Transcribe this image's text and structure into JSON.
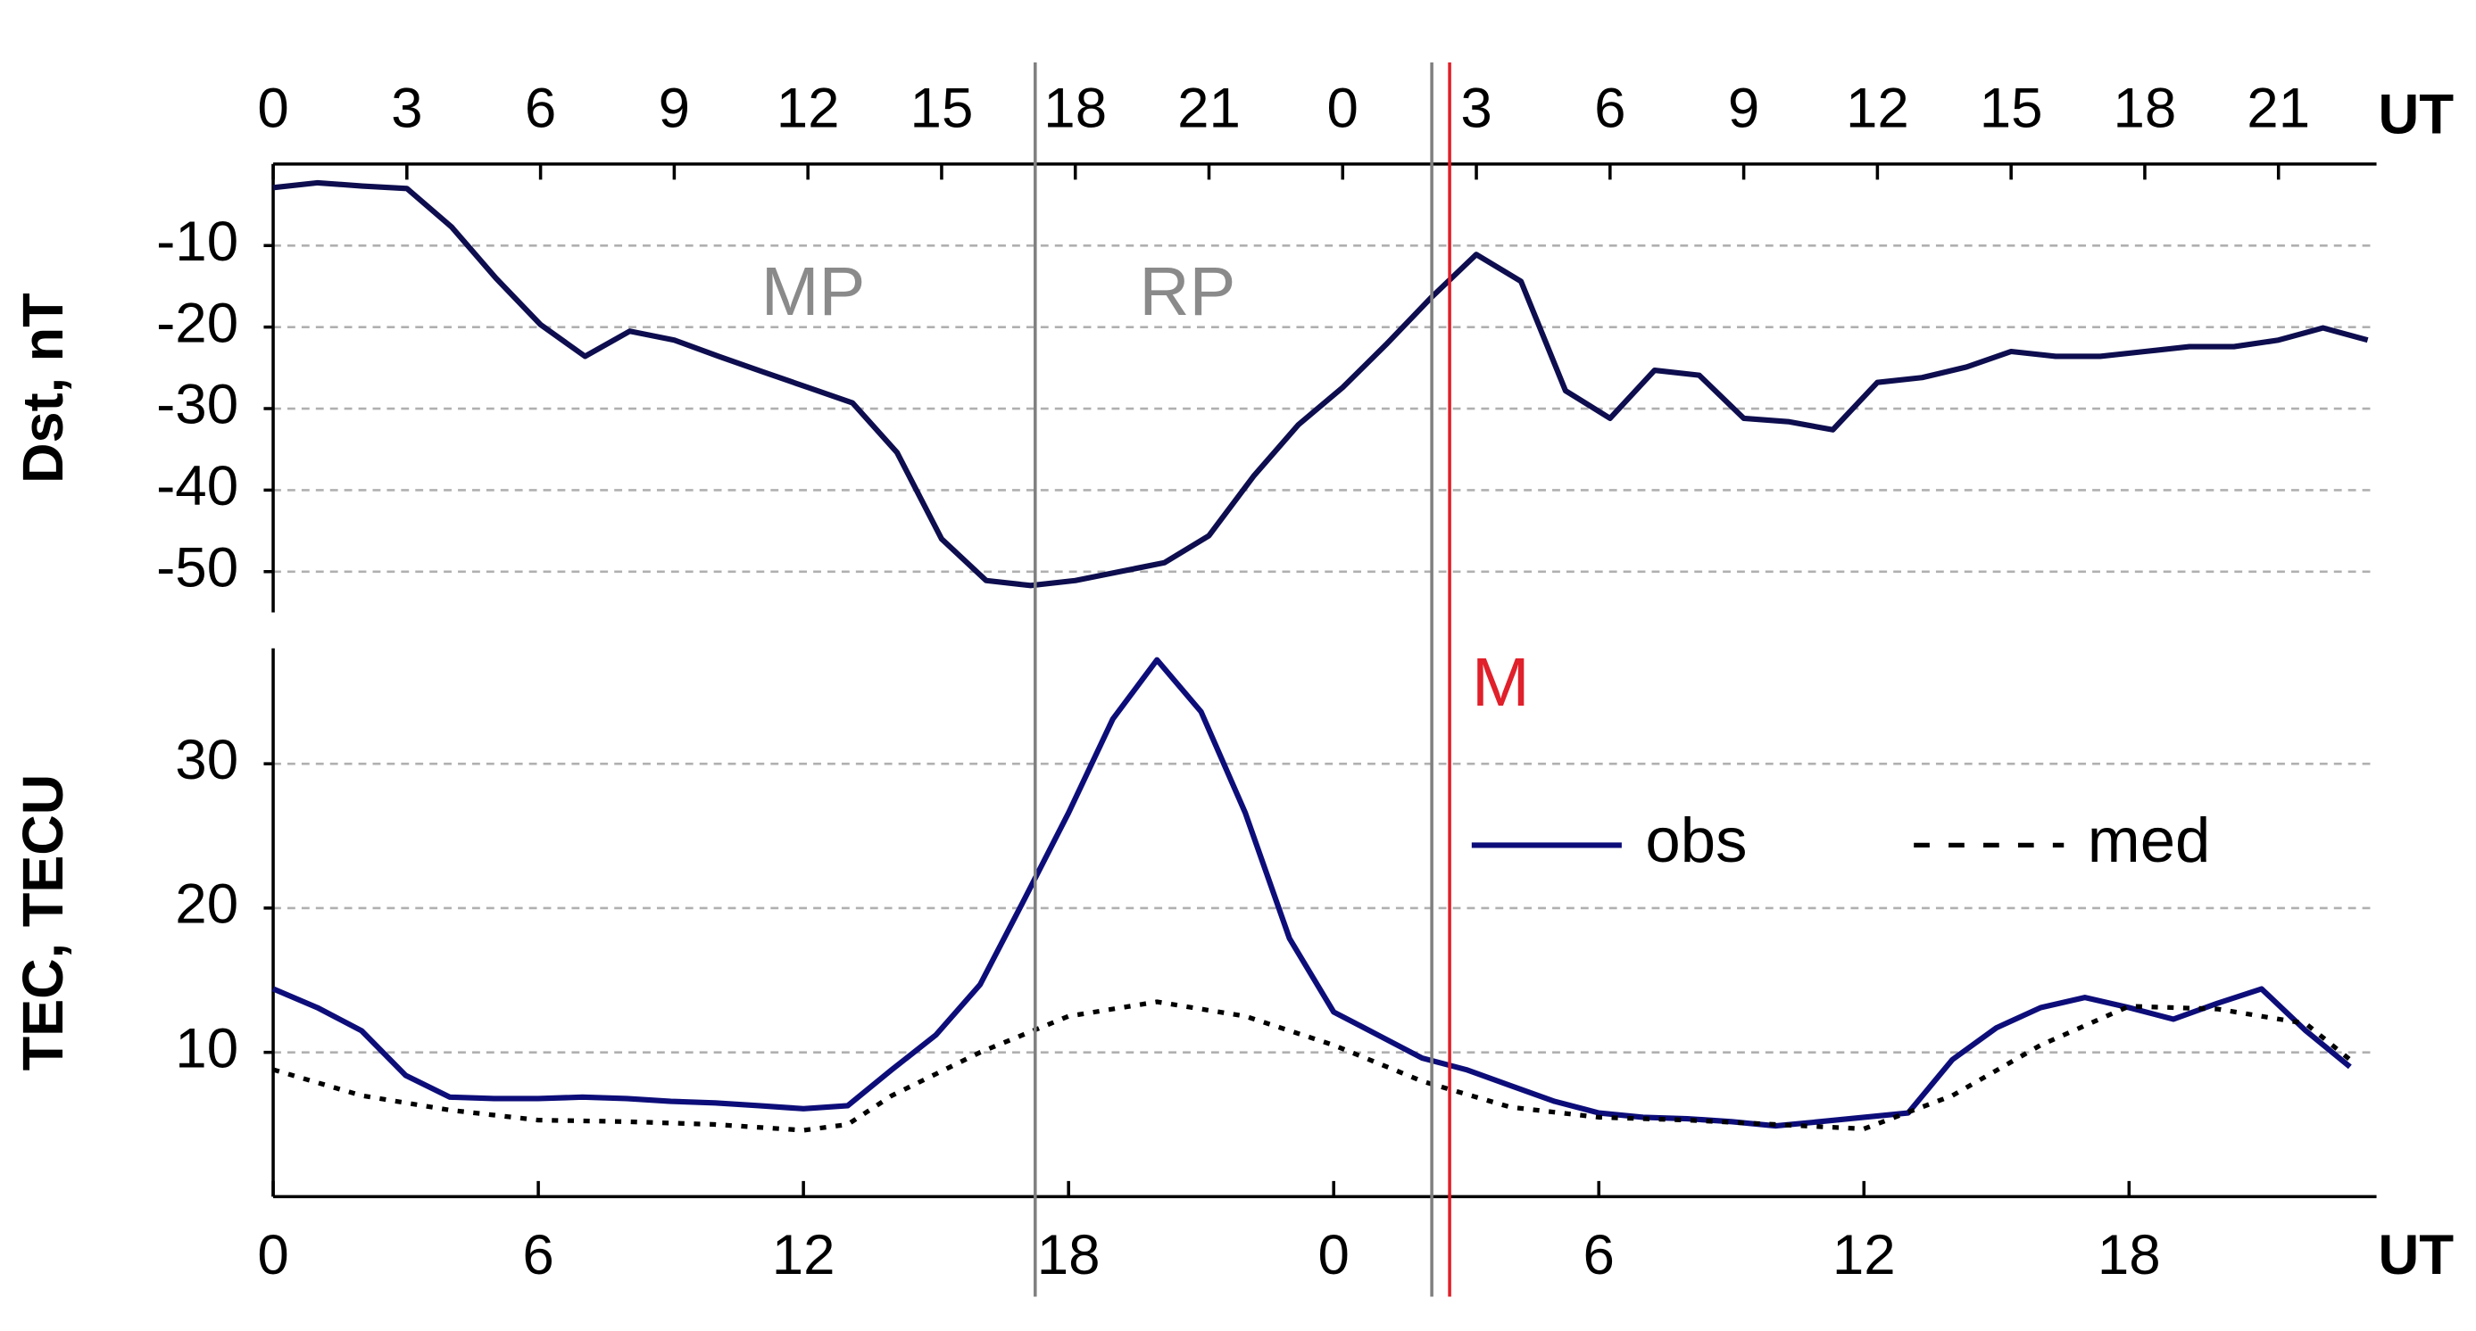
{
  "chart_data": [
    {
      "type": "line",
      "xaxis_position": "top",
      "xlabel": "UT",
      "ylabel": "Dst, nT",
      "xlim": [
        0,
        47.2
      ],
      "xticks": [
        0,
        3,
        6,
        9,
        12,
        15,
        18,
        21,
        {
          "value": 24,
          "label": "0"
        },
        {
          "value": 27,
          "label": "3"
        },
        {
          "value": 30,
          "label": "6"
        },
        {
          "value": 33,
          "label": "9"
        },
        {
          "value": 36,
          "label": "12"
        },
        {
          "value": 39,
          "label": "15"
        },
        {
          "value": 42,
          "label": "18"
        },
        {
          "value": 45,
          "label": "21"
        }
      ],
      "ylim": [
        -55,
        0
      ],
      "yticks": [
        -50,
        -40,
        -30,
        -20,
        -10
      ],
      "grid": true,
      "annotations": [
        "MP",
        "RP"
      ],
      "series": [
        {
          "name": "Dst",
          "color": "#0d0d4f",
          "x": [
            0,
            1,
            2,
            3,
            4,
            5,
            6,
            7,
            8,
            9,
            10,
            11,
            12,
            13,
            14,
            15,
            16,
            17,
            18,
            19,
            20,
            21,
            22,
            23,
            24,
            25,
            26,
            27,
            28,
            29,
            30,
            31,
            32,
            33,
            34,
            35,
            36,
            37,
            38,
            39,
            40,
            41,
            42,
            43,
            44,
            45,
            46,
            47
          ],
          "values": [
            -2.9,
            -2.3,
            -2.7,
            -3,
            -7.7,
            -14,
            -19.7,
            -23.6,
            -20.5,
            -21.6,
            -23.6,
            -25.5,
            -27.4,
            -29.3,
            -35.4,
            -46,
            -51.1,
            -51.7,
            -51.1,
            -50,
            -48.9,
            -45.6,
            -38.3,
            -32,
            -27.4,
            -22,
            -16.3,
            -11.1,
            -14.4,
            -27.8,
            -31.2,
            -25.3,
            -25.9,
            -31.2,
            -31.6,
            -32.6,
            -26.8,
            -26.2,
            -24.9,
            -23,
            -23.6,
            -23.6,
            -23,
            -22.4,
            -22.4,
            -21.6,
            -20.1,
            -21.6
          ]
        }
      ]
    },
    {
      "type": "line",
      "xaxis_position": "bottom",
      "xlabel": "UT",
      "ylabel": "TEC, TECU",
      "xlim": [
        0,
        47.6
      ],
      "xticks": [
        0,
        6,
        12,
        18,
        {
          "value": 24,
          "label": "0"
        },
        {
          "value": 30,
          "label": "6"
        },
        {
          "value": 36,
          "label": "12"
        },
        {
          "value": 42,
          "label": "18"
        }
      ],
      "ylim": [
        0,
        38
      ],
      "yticks": [
        10,
        20,
        30
      ],
      "grid": true,
      "legend": "upper right",
      "series": [
        {
          "name": "obs",
          "color": "#0d0d7a",
          "style": "solid",
          "x": [
            0,
            1,
            2,
            3,
            4,
            5,
            6,
            7,
            8,
            9,
            10,
            11,
            12,
            13,
            14,
            15,
            16,
            17,
            18,
            19,
            20,
            21,
            22,
            23,
            24,
            25,
            26,
            27,
            28,
            29,
            30,
            31,
            32,
            33,
            34,
            35,
            36,
            37,
            38,
            39,
            40,
            41,
            42,
            43,
            44,
            45,
            46,
            47
          ],
          "values": [
            14.4,
            13.1,
            11.5,
            8.4,
            6.9,
            6.8,
            6.8,
            6.9,
            6.8,
            6.6,
            6.5,
            6.3,
            6.1,
            6.3,
            8.8,
            11.2,
            14.7,
            20.6,
            26.6,
            33.1,
            37.2,
            33.6,
            26.6,
            17.9,
            12.8,
            11.2,
            9.6,
            8.8,
            7.7,
            6.6,
            5.8,
            5.5,
            5.4,
            5.2,
            4.9,
            5.2,
            5.5,
            5.8,
            9.5,
            11.7,
            13.1,
            13.8,
            13.1,
            12.3,
            13.4,
            14.4,
            11.5,
            9.0
          ]
        },
        {
          "name": "med",
          "color": "#000000",
          "style": "dotted",
          "x": [
            0,
            2,
            4,
            6,
            8,
            10,
            12,
            13,
            14,
            16,
            18,
            20,
            22,
            24,
            26,
            28,
            30,
            32,
            34,
            36,
            38,
            40,
            42,
            44,
            46,
            47
          ],
          "values": [
            8.8,
            7,
            6,
            5.3,
            5.2,
            5,
            4.6,
            5,
            7,
            10,
            12.5,
            13.5,
            12.5,
            10.5,
            8,
            6.2,
            5.5,
            5.3,
            5,
            4.7,
            7,
            10.5,
            13.2,
            13,
            12,
            9.5
          ]
        }
      ]
    }
  ],
  "markers": [
    {
      "x": 17.1,
      "color": "#808080"
    },
    {
      "x": 26.0,
      "color": "#808080"
    },
    {
      "x": 26.4,
      "color": "#e0202a",
      "label": "M"
    }
  ]
}
